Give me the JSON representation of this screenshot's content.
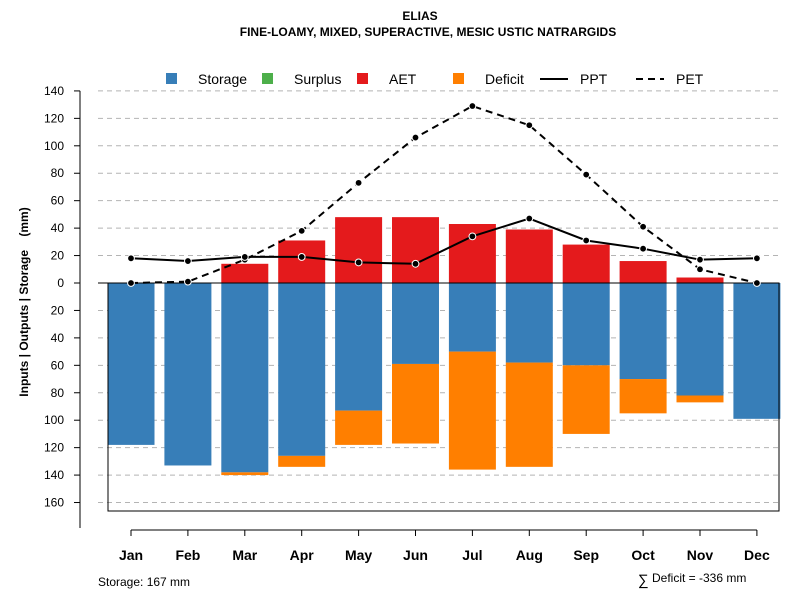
{
  "chart_data": {
    "type": "bar",
    "title": "ELIAS",
    "subtitle": "FINE-LOAMY, MIXED, SUPERACTIVE, MESIC USTIC NATRARGIDS",
    "ylabel": "Inputs | Outputs | Storage    (mm)",
    "categories": [
      "Jan",
      "Feb",
      "Mar",
      "Apr",
      "May",
      "Jun",
      "Jul",
      "Aug",
      "Sep",
      "Oct",
      "Nov",
      "Dec"
    ],
    "ylim": [
      -167,
      140
    ],
    "yticks": [
      140,
      120,
      100,
      80,
      60,
      40,
      20,
      0,
      -20,
      -40,
      -60,
      -80,
      -100,
      -120,
      -140,
      -160
    ],
    "ytick_labels": [
      "140",
      "120",
      "100",
      "80",
      "60",
      "40",
      "20",
      "0",
      "20",
      "40",
      "60",
      "80",
      "100",
      "120",
      "140",
      "160"
    ],
    "grid": true,
    "legend": [
      "Storage",
      "Surplus",
      "AET",
      "Deficit",
      "PPT",
      "PET"
    ],
    "colors": {
      "storage": "#377eb8",
      "surplus": "#4daf4a",
      "aet": "#e41a1c",
      "deficit": "#ff7f00",
      "line": "#000000"
    },
    "series": [
      {
        "name": "Storage",
        "kind": "bar-below",
        "values": [
          118,
          133,
          138,
          126,
          93,
          59,
          50,
          58,
          60,
          70,
          82,
          99
        ]
      },
      {
        "name": "Deficit",
        "kind": "bar-below-stacked",
        "values": [
          0,
          0,
          2,
          8,
          25,
          58,
          86,
          76,
          50,
          25,
          5,
          0
        ]
      },
      {
        "name": "Surplus",
        "kind": "bar-above",
        "values": [
          0,
          0,
          0,
          0,
          0,
          0,
          0,
          0,
          0,
          0,
          0,
          0
        ]
      },
      {
        "name": "AET",
        "kind": "bar-above",
        "values": [
          0,
          0,
          14,
          31,
          48,
          48,
          43,
          39,
          28,
          16,
          4,
          0
        ]
      },
      {
        "name": "PPT",
        "kind": "line-solid",
        "values": [
          18,
          16,
          19,
          19,
          15,
          14,
          34,
          47,
          31,
          25,
          17,
          18
        ]
      },
      {
        "name": "PET",
        "kind": "line-dashed",
        "values": [
          0,
          1,
          17,
          38,
          73,
          106,
          129,
          115,
          79,
          41,
          10,
          0
        ]
      }
    ],
    "footer_left": "Storage: 167 mm",
    "footer_right_symbol": "∑",
    "footer_right": "Deficit = -336 mm"
  }
}
